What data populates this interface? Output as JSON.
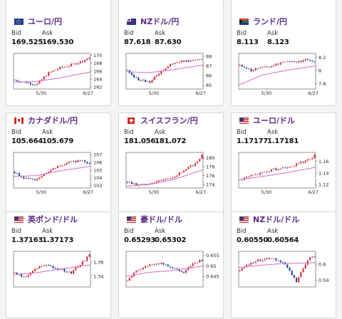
{
  "cards": [
    {
      "pair": "ユーロ/円",
      "flag": "eu",
      "bid": "169.525",
      "ask": "169.530",
      "yticks": [
        "170",
        "168",
        "166",
        "164",
        "162"
      ],
      "ymin": 161.5,
      "ymax": 170.5,
      "xticks": [
        "5/30",
        "6/27"
      ],
      "ma": [
        [
          0,
          163.2
        ],
        [
          0.3,
          163.4
        ],
        [
          0.6,
          164.3
        ],
        [
          1,
          165.8
        ]
      ],
      "price": [
        [
          0,
          163.8
        ],
        [
          0.15,
          163.2
        ],
        [
          0.3,
          162.6
        ],
        [
          0.45,
          165.5
        ],
        [
          0.6,
          166.8
        ],
        [
          0.75,
          167.6
        ],
        [
          0.9,
          168.6
        ],
        [
          1,
          169.6
        ]
      ]
    },
    {
      "pair": "NZドル/円",
      "flag": "nz",
      "bid": "87.618",
      "ask": "87.630",
      "yticks": [
        "88",
        "87",
        "86",
        "85"
      ],
      "ymin": 84.6,
      "ymax": 88.3,
      "xticks": [
        "5/30",
        "6/27"
      ],
      "ma": [
        [
          0,
          86.4
        ],
        [
          0.3,
          86.3
        ],
        [
          0.6,
          86.6
        ],
        [
          1,
          87.1
        ]
      ],
      "price": [
        [
          0,
          86.6
        ],
        [
          0.15,
          85.6
        ],
        [
          0.3,
          85.3
        ],
        [
          0.45,
          86.4
        ],
        [
          0.6,
          87.3
        ],
        [
          0.75,
          87.5
        ],
        [
          0.9,
          87.7
        ],
        [
          1,
          87.7
        ]
      ]
    },
    {
      "pair": "ランド/円",
      "flag": "za",
      "bid": "8.113",
      "ask": "8.123",
      "yticks": [
        "8.2",
        "8",
        "7.8"
      ],
      "ymin": 7.72,
      "ymax": 8.26,
      "xticks": [
        "5/30",
        "6/27"
      ],
      "ma": [
        [
          0,
          7.78
        ],
        [
          0.3,
          7.93
        ],
        [
          0.6,
          8.0
        ],
        [
          1,
          8.07
        ]
      ],
      "price": [
        [
          0,
          8.08
        ],
        [
          0.15,
          8.0
        ],
        [
          0.3,
          8.05
        ],
        [
          0.45,
          8.07
        ],
        [
          0.6,
          8.15
        ],
        [
          0.75,
          8.13
        ],
        [
          0.9,
          8.17
        ],
        [
          1,
          8.12
        ]
      ]
    },
    {
      "pair": "カナダドル/円",
      "flag": "ca",
      "bid": "105.664",
      "ask": "105.679",
      "yticks": [
        "107",
        "106",
        "105",
        "104",
        "103"
      ],
      "ymin": 102.7,
      "ymax": 107.3,
      "xticks": [
        "5/30",
        "6/27"
      ],
      "ma": [
        [
          0,
          104.2
        ],
        [
          0.3,
          104.3
        ],
        [
          0.6,
          104.9
        ],
        [
          1,
          105.5
        ]
      ],
      "price": [
        [
          0,
          104.8
        ],
        [
          0.15,
          103.9
        ],
        [
          0.3,
          103.7
        ],
        [
          0.45,
          104.8
        ],
        [
          0.6,
          105.6
        ],
        [
          0.75,
          106.1
        ],
        [
          0.9,
          106.3
        ],
        [
          1,
          105.7
        ]
      ]
    },
    {
      "pair": "スイスフラン/円",
      "flag": "ch",
      "bid": "181.056",
      "ask": "181.072",
      "yticks": [
        "180",
        "178",
        "176",
        "174"
      ],
      "ymin": 173.2,
      "ymax": 181.2,
      "xticks": [
        "5/30",
        "6/27"
      ],
      "ma": [
        [
          0,
          173.6
        ],
        [
          0.3,
          174.0
        ],
        [
          0.6,
          175.0
        ],
        [
          1,
          177.3
        ]
      ],
      "price": [
        [
          0,
          174.6
        ],
        [
          0.15,
          173.8
        ],
        [
          0.3,
          174.2
        ],
        [
          0.45,
          175.0
        ],
        [
          0.6,
          175.6
        ],
        [
          0.75,
          177.0
        ],
        [
          0.9,
          178.8
        ],
        [
          1,
          180.8
        ]
      ]
    },
    {
      "pair": "ユーロ/ドル",
      "flag": "us",
      "bid": "1.17177",
      "ask": "1.17181",
      "yticks": [
        "1.16",
        "1.14",
        "1.12"
      ],
      "ymin": 1.114,
      "ymax": 1.176,
      "xticks": [
        "5/30",
        "6/27"
      ],
      "ma": [
        [
          0,
          1.128
        ],
        [
          0.3,
          1.134
        ],
        [
          0.6,
          1.14
        ],
        [
          1,
          1.15
        ]
      ],
      "price": [
        [
          0,
          1.128
        ],
        [
          0.15,
          1.135
        ],
        [
          0.3,
          1.14
        ],
        [
          0.45,
          1.146
        ],
        [
          0.6,
          1.15
        ],
        [
          0.75,
          1.155
        ],
        [
          0.9,
          1.163
        ],
        [
          1,
          1.172
        ]
      ]
    },
    {
      "pair": "英ポンド/ドル",
      "flag": "us",
      "bid": "1.37163",
      "ask": "1.37173",
      "yticks": [
        "1.36",
        "1.34"
      ],
      "ymin": 1.325,
      "ymax": 1.375,
      "xticks": [],
      "ma": [
        [
          0,
          1.342
        ],
        [
          0.3,
          1.345
        ],
        [
          0.6,
          1.35
        ],
        [
          1,
          1.356
        ]
      ],
      "price": [
        [
          0,
          1.345
        ],
        [
          0.15,
          1.338
        ],
        [
          0.3,
          1.352
        ],
        [
          0.45,
          1.355
        ],
        [
          0.6,
          1.35
        ],
        [
          0.75,
          1.345
        ],
        [
          0.9,
          1.36
        ],
        [
          1,
          1.371
        ]
      ]
    },
    {
      "pair": "豪ドル/ドル",
      "flag": "us",
      "bid": "0.65293",
      "ask": "0.65302",
      "yticks": [
        "0.655",
        "0.65",
        "0.645"
      ],
      "ymin": 0.64,
      "ymax": 0.657,
      "xticks": [],
      "ma": [
        [
          0,
          0.645
        ],
        [
          0.3,
          0.647
        ],
        [
          0.6,
          0.6478
        ],
        [
          1,
          0.65
        ]
      ],
      "price": [
        [
          0,
          0.643
        ],
        [
          0.15,
          0.648
        ],
        [
          0.3,
          0.6505
        ],
        [
          0.45,
          0.6515
        ],
        [
          0.6,
          0.649
        ],
        [
          0.75,
          0.647
        ],
        [
          0.9,
          0.652
        ],
        [
          1,
          0.653
        ]
      ]
    },
    {
      "pair": "NZドル/ドル",
      "flag": "us",
      "bid": "0.60550",
      "ask": "0.60564",
      "yticks": [
        "0.6",
        "0.59"
      ],
      "ymin": 0.586,
      "ymax": 0.608,
      "xticks": [],
      "ma": [
        [
          0,
          0.598
        ],
        [
          0.3,
          0.5995
        ],
        [
          0.6,
          0.6005
        ],
        [
          1,
          0.601
        ]
      ],
      "price": [
        [
          0,
          0.596
        ],
        [
          0.15,
          0.601
        ],
        [
          0.3,
          0.603
        ],
        [
          0.45,
          0.604
        ],
        [
          0.6,
          0.6
        ],
        [
          0.75,
          0.589
        ],
        [
          0.9,
          0.603
        ],
        [
          1,
          0.6055
        ]
      ]
    }
  ],
  "labels": {
    "bid": "Bid",
    "ask": "Ask"
  },
  "colors": {
    "up": "#e0252d",
    "down": "#1c3d97",
    "ma": "#d26bd2",
    "title": "#5b2a86"
  }
}
